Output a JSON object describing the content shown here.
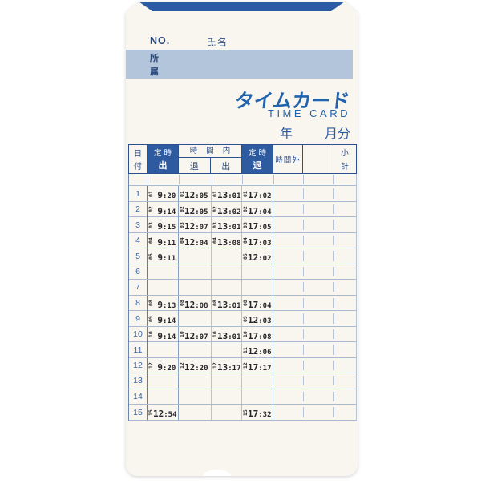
{
  "card": {
    "no_label": "NO.",
    "name_label": "氏名",
    "department_l1": "所",
    "department_l2": "属",
    "title_ja": "タイムカード",
    "title_en": "TIME CARD",
    "year_label": "年",
    "month_label": "月分"
  },
  "colors": {
    "top_band_blue": "#2c5ba6",
    "department_band_blue": "#b3c5da",
    "table_border_dark": "#2e4f8f",
    "header_cell_bg": "#2e5a9f",
    "title_blue": "#2263ad",
    "label_navy": "#2c4a7c",
    "row_line_blue": "#a9bbd2",
    "stamp_ink": "#26262b",
    "card_bg": "#f8f6ef"
  },
  "table": {
    "headers": {
      "date_l1": "日",
      "date_l2": "付",
      "sched_in_l1": "定時",
      "sched_in_l2": "出",
      "within_hours": "時間内",
      "break_out": "退",
      "break_in": "出",
      "sched_out_l1": "定時",
      "sched_out_l2": "退",
      "overtime": "時間外",
      "blank": "",
      "subtotal_l1": "小",
      "subtotal_l2": "計"
    },
    "rows": [
      {
        "no": "1",
        "stamps": [
          {
            "d": "01",
            "t": "9:20"
          },
          {
            "d": "01",
            "t": "12:05"
          },
          {
            "d": "01",
            "t": "13:01"
          },
          {
            "d": "01",
            "t": "17:02"
          }
        ]
      },
      {
        "no": "2",
        "stamps": [
          {
            "d": "02",
            "t": "9:14"
          },
          {
            "d": "02",
            "t": "12:05"
          },
          {
            "d": "02",
            "t": "13:02"
          },
          {
            "d": "02",
            "t": "17:04"
          }
        ]
      },
      {
        "no": "3",
        "stamps": [
          {
            "d": "03",
            "t": "9:15"
          },
          {
            "d": "03",
            "t": "12:07"
          },
          {
            "d": "03",
            "t": "13:01"
          },
          {
            "d": "03",
            "t": "17:05"
          }
        ]
      },
      {
        "no": "4",
        "stamps": [
          {
            "d": "04",
            "t": "9:11"
          },
          {
            "d": "04",
            "t": "12:04"
          },
          {
            "d": "04",
            "t": "13:08"
          },
          {
            "d": "04",
            "t": "17:03"
          }
        ]
      },
      {
        "no": "5",
        "stamps": [
          {
            "d": "05",
            "t": "9:11"
          },
          null,
          null,
          {
            "d": "05",
            "t": "12:02"
          }
        ]
      },
      {
        "no": "6",
        "stamps": [
          null,
          null,
          null,
          null
        ]
      },
      {
        "no": "7",
        "stamps": [
          null,
          null,
          null,
          null
        ]
      },
      {
        "no": "8",
        "stamps": [
          {
            "d": "08",
            "t": "9:13"
          },
          {
            "d": "08",
            "t": "12:08"
          },
          {
            "d": "08",
            "t": "13:01"
          },
          {
            "d": "08",
            "t": "17:04"
          }
        ]
      },
      {
        "no": "9",
        "stamps": [
          {
            "d": "09",
            "t": "9:14"
          },
          null,
          null,
          {
            "d": "09",
            "t": "12:03"
          }
        ]
      },
      {
        "no": "10",
        "stamps": [
          {
            "d": "10",
            "t": "9:14"
          },
          {
            "d": "10",
            "t": "12:07"
          },
          {
            "d": "10",
            "t": "13:01"
          },
          {
            "d": "10",
            "t": "17:08"
          }
        ]
      },
      {
        "no": "11",
        "stamps": [
          null,
          null,
          null,
          {
            "d": "11",
            "t": "12:06"
          }
        ]
      },
      {
        "no": "12",
        "stamps": [
          {
            "d": "12",
            "t": "9:20"
          },
          {
            "d": "12",
            "t": "12:20"
          },
          {
            "d": "12",
            "t": "13:17"
          },
          {
            "d": "12",
            "t": "17:17"
          }
        ]
      },
      {
        "no": "13",
        "stamps": [
          null,
          null,
          null,
          null
        ]
      },
      {
        "no": "14",
        "stamps": [
          null,
          null,
          null,
          null
        ]
      },
      {
        "no": "15",
        "stamps": [
          {
            "d": "15",
            "t": "12:54"
          },
          null,
          null,
          {
            "d": "15",
            "t": "17:32"
          }
        ]
      }
    ]
  }
}
